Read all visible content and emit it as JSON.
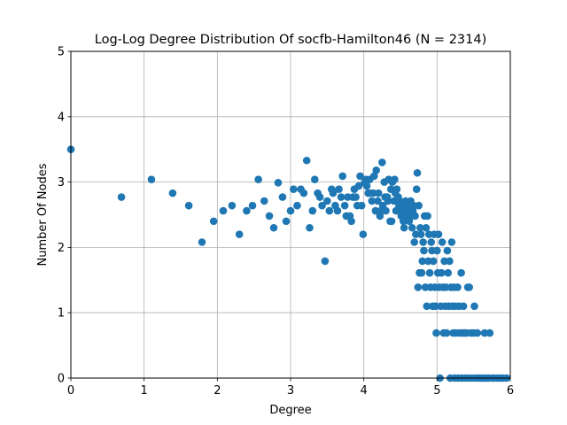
{
  "chart_data": {
    "type": "scatter",
    "title": "Log-Log Degree Distribution Of socfb-Hamilton46 (N = 2314)",
    "xlabel": "Degree",
    "ylabel": "Number Of Nodes",
    "xlim": [
      0,
      6
    ],
    "ylim": [
      0,
      5
    ],
    "xticks": [
      "0",
      "1",
      "2",
      "3",
      "4",
      "5",
      "6"
    ],
    "yticks": [
      "0",
      "1",
      "2",
      "3",
      "4",
      "5"
    ],
    "grid": true,
    "marker_color": "#1f77b4",
    "points": [
      [
        0.0,
        3.5
      ],
      [
        0.69,
        2.77
      ],
      [
        1.1,
        3.04
      ],
      [
        1.39,
        2.83
      ],
      [
        1.61,
        2.64
      ],
      [
        1.79,
        2.08
      ],
      [
        1.95,
        2.4
      ],
      [
        2.08,
        2.56
      ],
      [
        2.2,
        2.64
      ],
      [
        2.3,
        2.2
      ],
      [
        2.4,
        2.56
      ],
      [
        2.48,
        2.64
      ],
      [
        2.56,
        3.04
      ],
      [
        2.64,
        2.71
      ],
      [
        2.71,
        2.48
      ],
      [
        2.77,
        2.3
      ],
      [
        2.83,
        2.99
      ],
      [
        2.89,
        2.77
      ],
      [
        2.94,
        2.4
      ],
      [
        3.0,
        2.56
      ],
      [
        3.04,
        2.89
      ],
      [
        3.09,
        2.64
      ],
      [
        3.14,
        2.89
      ],
      [
        3.18,
        2.83
      ],
      [
        3.22,
        3.33
      ],
      [
        3.26,
        2.3
      ],
      [
        3.3,
        2.56
      ],
      [
        3.33,
        3.04
      ],
      [
        3.37,
        2.83
      ],
      [
        3.4,
        2.77
      ],
      [
        3.43,
        2.64
      ],
      [
        3.47,
        1.79
      ],
      [
        3.5,
        2.71
      ],
      [
        3.53,
        2.56
      ],
      [
        3.56,
        2.89
      ],
      [
        3.58,
        2.83
      ],
      [
        3.61,
        2.64
      ],
      [
        3.64,
        2.56
      ],
      [
        3.66,
        2.89
      ],
      [
        3.69,
        2.77
      ],
      [
        3.71,
        3.09
      ],
      [
        3.74,
        2.64
      ],
      [
        3.76,
        2.48
      ],
      [
        3.78,
        2.77
      ],
      [
        3.81,
        2.48
      ],
      [
        3.83,
        2.4
      ],
      [
        3.85,
        2.77
      ],
      [
        3.87,
        2.89
      ],
      [
        3.89,
        2.77
      ],
      [
        3.91,
        2.64
      ],
      [
        3.93,
        2.94
      ],
      [
        3.95,
        3.09
      ],
      [
        3.97,
        2.64
      ],
      [
        3.99,
        2.2
      ],
      [
        4.01,
        2.99
      ],
      [
        4.03,
        3.04
      ],
      [
        4.04,
        2.94
      ],
      [
        4.06,
        2.83
      ],
      [
        4.08,
        3.04
      ],
      [
        4.09,
        2.83
      ],
      [
        4.11,
        2.71
      ],
      [
        4.13,
        2.83
      ],
      [
        4.14,
        3.09
      ],
      [
        4.16,
        2.56
      ],
      [
        4.17,
        3.18
      ],
      [
        4.19,
        2.71
      ],
      [
        4.2,
        2.83
      ],
      [
        4.22,
        2.48
      ],
      [
        4.23,
        2.56
      ],
      [
        4.25,
        3.3
      ],
      [
        4.26,
        2.64
      ],
      [
        4.28,
        3.0
      ],
      [
        4.29,
        2.77
      ],
      [
        4.3,
        2.56
      ],
      [
        4.32,
        2.77
      ],
      [
        4.33,
        2.71
      ],
      [
        4.34,
        3.04
      ],
      [
        4.36,
        2.4
      ],
      [
        4.37,
        2.89
      ],
      [
        4.38,
        2.4
      ],
      [
        4.39,
        3.0
      ],
      [
        4.41,
        2.71
      ],
      [
        4.42,
        3.04
      ],
      [
        4.43,
        2.83
      ],
      [
        4.44,
        2.56
      ],
      [
        4.45,
        2.89
      ],
      [
        4.47,
        2.77
      ],
      [
        4.48,
        2.64
      ],
      [
        4.49,
        2.71
      ],
      [
        4.5,
        2.56
      ],
      [
        4.51,
        2.48
      ],
      [
        4.52,
        2.64
      ],
      [
        4.53,
        2.56
      ],
      [
        4.54,
        2.4
      ],
      [
        4.55,
        2.3
      ],
      [
        4.56,
        2.64
      ],
      [
        4.57,
        2.71
      ],
      [
        4.58,
        2.56
      ],
      [
        4.6,
        2.48
      ],
      [
        4.61,
        2.64
      ],
      [
        4.62,
        2.4
      ],
      [
        4.63,
        2.56
      ],
      [
        4.64,
        2.71
      ],
      [
        4.65,
        2.48
      ],
      [
        4.66,
        2.3
      ],
      [
        4.67,
        2.56
      ],
      [
        4.68,
        2.64
      ],
      [
        4.69,
        2.08
      ],
      [
        4.7,
        2.48
      ],
      [
        4.71,
        2.2
      ],
      [
        4.72,
        2.89
      ],
      [
        4.73,
        3.14
      ],
      [
        4.74,
        1.39
      ],
      [
        4.75,
        2.64
      ],
      [
        4.76,
        1.61
      ],
      [
        4.77,
        2.3
      ],
      [
        4.78,
        2.2
      ],
      [
        4.79,
        1.61
      ],
      [
        4.8,
        1.79
      ],
      [
        4.81,
        2.08
      ],
      [
        4.82,
        1.95
      ],
      [
        4.83,
        2.48
      ],
      [
        4.84,
        1.39
      ],
      [
        4.85,
        2.3
      ],
      [
        4.86,
        1.1
      ],
      [
        4.87,
        2.48
      ],
      [
        4.88,
        1.79
      ],
      [
        4.89,
        2.2
      ],
      [
        4.9,
        1.61
      ],
      [
        4.91,
        1.39
      ],
      [
        4.92,
        2.08
      ],
      [
        4.93,
        1.95
      ],
      [
        4.94,
        1.1
      ],
      [
        4.95,
        1.79
      ],
      [
        4.96,
        2.2
      ],
      [
        4.97,
        1.39
      ],
      [
        4.98,
        1.1
      ],
      [
        4.99,
        0.69
      ],
      [
        5.0,
        1.95
      ],
      [
        5.01,
        1.61
      ],
      [
        5.02,
        2.2
      ],
      [
        5.03,
        1.39
      ],
      [
        5.04,
        0.0
      ],
      [
        5.05,
        1.1
      ],
      [
        5.06,
        1.61
      ],
      [
        5.07,
        2.08
      ],
      [
        5.08,
        1.39
      ],
      [
        5.09,
        0.69
      ],
      [
        5.1,
        1.79
      ],
      [
        5.11,
        1.1
      ],
      [
        5.12,
        1.39
      ],
      [
        5.13,
        0.69
      ],
      [
        5.14,
        1.95
      ],
      [
        5.15,
        1.61
      ],
      [
        5.16,
        1.1
      ],
      [
        5.17,
        1.79
      ],
      [
        5.18,
        0.0
      ],
      [
        5.19,
        1.39
      ],
      [
        5.2,
        2.08
      ],
      [
        5.21,
        1.1
      ],
      [
        5.22,
        0.69
      ],
      [
        5.23,
        1.39
      ],
      [
        5.24,
        0.0
      ],
      [
        5.25,
        1.1
      ],
      [
        5.26,
        0.69
      ],
      [
        5.28,
        1.39
      ],
      [
        5.29,
        0.0
      ],
      [
        5.3,
        1.1
      ],
      [
        5.31,
        0.69
      ],
      [
        5.33,
        1.61
      ],
      [
        5.34,
        0.0
      ],
      [
        5.35,
        0.69
      ],
      [
        5.36,
        1.1
      ],
      [
        5.38,
        0.69
      ],
      [
        5.39,
        0.0
      ],
      [
        5.4,
        0.69
      ],
      [
        5.42,
        1.39
      ],
      [
        5.43,
        0.0
      ],
      [
        5.44,
        1.39
      ],
      [
        5.46,
        0.69
      ],
      [
        5.48,
        0.0
      ],
      [
        5.5,
        0.69
      ],
      [
        5.51,
        1.1
      ],
      [
        5.53,
        0.0
      ],
      [
        5.55,
        0.69
      ],
      [
        5.57,
        0.0
      ],
      [
        5.6,
        0.0
      ],
      [
        5.63,
        0.0
      ],
      [
        5.65,
        0.69
      ],
      [
        5.67,
        0.0
      ],
      [
        5.7,
        0.0
      ],
      [
        5.72,
        0.69
      ],
      [
        5.75,
        0.0
      ],
      [
        5.78,
        0.0
      ],
      [
        5.82,
        0.0
      ],
      [
        5.86,
        0.0
      ],
      [
        5.9,
        0.0
      ],
      [
        5.95,
        0.0
      ]
    ]
  }
}
